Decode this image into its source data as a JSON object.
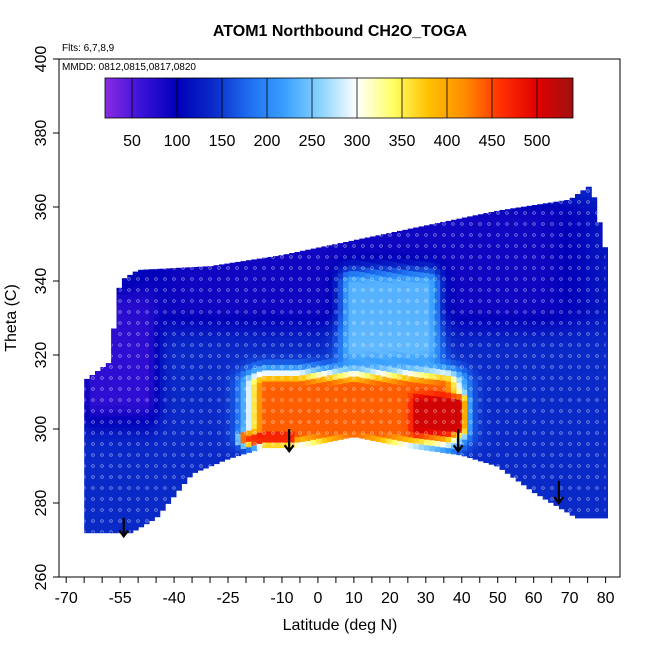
{
  "chart_data": {
    "type": "heatmap",
    "title": "ATOM1 Northbound CH2O_TOGA",
    "flights_note": "Flts: 6,7,8,9",
    "dates_note": "MMDD: 0812,0815,0817,0820",
    "xlabel": "Latitude (deg N)",
    "ylabel": "Theta (C)",
    "xlim": [
      -72,
      84
    ],
    "ylim": [
      260,
      400
    ],
    "x_ticks": [
      -70,
      -55,
      -40,
      -25,
      -10,
      0,
      10,
      20,
      30,
      40,
      50,
      60,
      70,
      80
    ],
    "x_tick_labels": [
      "-70",
      "-55",
      "-40",
      "-25",
      "-10",
      "0",
      "10",
      "20",
      "30",
      "40",
      "50",
      "60",
      "70",
      "80"
    ],
    "y_ticks": [
      260,
      280,
      300,
      320,
      340,
      360,
      380,
      400
    ],
    "y_tick_labels": [
      "260",
      "280",
      "300",
      "320",
      "340",
      "360",
      "380",
      "400"
    ],
    "colorbar": {
      "range": [
        20,
        540
      ],
      "ticks": [
        50,
        100,
        150,
        200,
        250,
        300,
        350,
        400,
        450,
        500
      ],
      "tick_labels": [
        "50",
        "100",
        "150",
        "200",
        "250",
        "300",
        "350",
        "400",
        "450",
        "500"
      ],
      "colors": [
        "#8a2be2",
        "#3a12d8",
        "#0000b8",
        "#0a2ac8",
        "#1e6ef0",
        "#3aa0ff",
        "#8cd4ff",
        "#ffffff",
        "#ffff66",
        "#ffc000",
        "#ff8c00",
        "#ff3000",
        "#e00000",
        "#a01010"
      ]
    },
    "domain_lower_boundary": [
      {
        "lat": -65,
        "theta": 272
      },
      {
        "lat": -52,
        "theta": 272
      },
      {
        "lat": -45,
        "theta": 276
      },
      {
        "lat": -35,
        "theta": 288
      },
      {
        "lat": -25,
        "theta": 292
      },
      {
        "lat": -15,
        "theta": 295
      },
      {
        "lat": -5,
        "theta": 295
      },
      {
        "lat": 10,
        "theta": 298
      },
      {
        "lat": 25,
        "theta": 295
      },
      {
        "lat": 40,
        "theta": 293
      },
      {
        "lat": 50,
        "theta": 290
      },
      {
        "lat": 60,
        "theta": 283
      },
      {
        "lat": 72,
        "theta": 276
      },
      {
        "lat": 80,
        "theta": 276
      }
    ],
    "domain_upper_boundary": [
      {
        "lat": -65,
        "theta": 313
      },
      {
        "lat": -58,
        "theta": 318
      },
      {
        "lat": -55,
        "theta": 340
      },
      {
        "lat": -50,
        "theta": 343
      },
      {
        "lat": -30,
        "theta": 344
      },
      {
        "lat": -10,
        "theta": 347
      },
      {
        "lat": 10,
        "theta": 351
      },
      {
        "lat": 30,
        "theta": 355
      },
      {
        "lat": 50,
        "theta": 359
      },
      {
        "lat": 70,
        "theta": 362
      },
      {
        "lat": 76,
        "theta": 366
      },
      {
        "lat": 80,
        "theta": 348
      }
    ],
    "field_features": [
      {
        "name": "tropical lower-troposphere maximum",
        "lat_range": [
          -25,
          45
        ],
        "theta_range": [
          295,
          316
        ],
        "value": 440
      },
      {
        "name": "peak core",
        "lat_range": [
          25,
          42
        ],
        "theta_range": [
          298,
          310
        ],
        "value": 510
      },
      {
        "name": "band near theta 297",
        "lat_range": [
          -23,
          -5
        ],
        "theta_range": [
          296,
          299
        ],
        "value": 480
      },
      {
        "name": "high-latitude south background",
        "lat_range": [
          -65,
          -45
        ],
        "theta_range": [
          300,
          340
        ],
        "value": 60
      },
      {
        "name": "upper troposphere background",
        "lat_range": [
          -55,
          80
        ],
        "theta_range": [
          325,
          365
        ],
        "value": 80
      },
      {
        "name": "tropical upper plume",
        "lat_range": [
          5,
          35
        ],
        "theta_range": [
          316,
          345
        ],
        "value": 250
      }
    ],
    "arrows": [
      {
        "lat": -54,
        "theta_top": 276,
        "theta_tip": 271
      },
      {
        "lat": -8,
        "theta_top": 300,
        "theta_tip": 294
      },
      {
        "lat": 39,
        "theta_top": 300,
        "theta_tip": 294
      },
      {
        "lat": 67,
        "theta_top": 286,
        "theta_tip": 280
      }
    ]
  }
}
